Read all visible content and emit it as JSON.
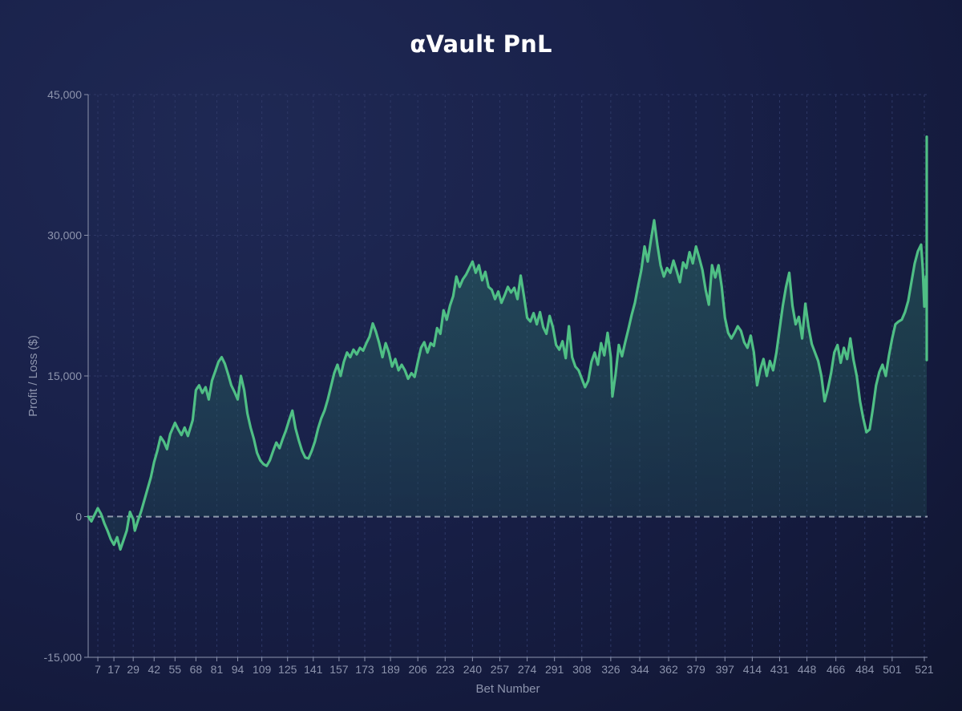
{
  "chart_data": {
    "type": "area",
    "title": "αVault PnL",
    "xlabel": "Bet Number",
    "ylabel": "Profit / Loss ($)",
    "ylim": [
      -15000,
      45000
    ],
    "xlim": [
      1,
      523
    ],
    "y_ticks": [
      -15000,
      0,
      15000,
      30000,
      45000
    ],
    "y_tick_labels": [
      "-15,000",
      "0",
      "15,000",
      "30,000",
      "45,000"
    ],
    "x_ticks": [
      7,
      17,
      29,
      42,
      55,
      68,
      81,
      94,
      109,
      125,
      141,
      157,
      173,
      189,
      206,
      223,
      240,
      257,
      274,
      291,
      308,
      326,
      344,
      362,
      379,
      397,
      414,
      431,
      448,
      466,
      484,
      501,
      521
    ],
    "zero_line": true,
    "grid": "dashed vertical and horizontal",
    "colors": {
      "line": "#4fbf85",
      "zero_line": "#aab0c4",
      "grid": "#2e3866",
      "axis": "#8d94ad",
      "background": "#19214a"
    },
    "series": [
      {
        "points": [
          [
            1,
            0
          ],
          [
            3,
            -500
          ],
          [
            5,
            200
          ],
          [
            7,
            900
          ],
          [
            9,
            300
          ],
          [
            11,
            -700
          ],
          [
            13,
            -1500
          ],
          [
            15,
            -2400
          ],
          [
            17,
            -3000
          ],
          [
            19,
            -2200
          ],
          [
            21,
            -3500
          ],
          [
            23,
            -2500
          ],
          [
            25,
            -1500
          ],
          [
            27,
            500
          ],
          [
            29,
            -300
          ],
          [
            30,
            -1500
          ],
          [
            32,
            -400
          ],
          [
            34,
            600
          ],
          [
            36,
            1800
          ],
          [
            38,
            3000
          ],
          [
            40,
            4200
          ],
          [
            42,
            5800
          ],
          [
            44,
            7000
          ],
          [
            46,
            8500
          ],
          [
            48,
            8000
          ],
          [
            50,
            7200
          ],
          [
            52,
            8800
          ],
          [
            54,
            9600
          ],
          [
            55,
            10000
          ],
          [
            57,
            9300
          ],
          [
            59,
            8700
          ],
          [
            61,
            9500
          ],
          [
            63,
            8600
          ],
          [
            66,
            10300
          ],
          [
            68,
            13500
          ],
          [
            70,
            14000
          ],
          [
            72,
            13200
          ],
          [
            74,
            13800
          ],
          [
            76,
            12500
          ],
          [
            78,
            14500
          ],
          [
            80,
            15500
          ],
          [
            82,
            16500
          ],
          [
            84,
            17000
          ],
          [
            86,
            16300
          ],
          [
            88,
            15200
          ],
          [
            90,
            14000
          ],
          [
            92,
            13300
          ],
          [
            94,
            12500
          ],
          [
            96,
            15000
          ],
          [
            98,
            13500
          ],
          [
            100,
            11000
          ],
          [
            102,
            9500
          ],
          [
            104,
            8300
          ],
          [
            106,
            6800
          ],
          [
            108,
            6000
          ],
          [
            110,
            5600
          ],
          [
            112,
            5400
          ],
          [
            114,
            6000
          ],
          [
            116,
            7000
          ],
          [
            118,
            7900
          ],
          [
            120,
            7300
          ],
          [
            122,
            8300
          ],
          [
            124,
            9200
          ],
          [
            126,
            10300
          ],
          [
            128,
            11300
          ],
          [
            130,
            9400
          ],
          [
            132,
            8100
          ],
          [
            134,
            7000
          ],
          [
            136,
            6300
          ],
          [
            138,
            6200
          ],
          [
            140,
            7000
          ],
          [
            142,
            8000
          ],
          [
            144,
            9400
          ],
          [
            146,
            10500
          ],
          [
            148,
            11300
          ],
          [
            150,
            12500
          ],
          [
            152,
            13900
          ],
          [
            154,
            15300
          ],
          [
            156,
            16200
          ],
          [
            158,
            15000
          ],
          [
            160,
            16500
          ],
          [
            162,
            17500
          ],
          [
            164,
            17000
          ],
          [
            166,
            17800
          ],
          [
            168,
            17300
          ],
          [
            170,
            18000
          ],
          [
            172,
            17700
          ],
          [
            174,
            18500
          ],
          [
            176,
            19200
          ],
          [
            178,
            20600
          ],
          [
            180,
            19700
          ],
          [
            182,
            18500
          ],
          [
            184,
            17000
          ],
          [
            186,
            18500
          ],
          [
            188,
            17500
          ],
          [
            190,
            16000
          ],
          [
            192,
            16800
          ],
          [
            194,
            15600
          ],
          [
            196,
            16200
          ],
          [
            198,
            15600
          ],
          [
            200,
            14700
          ],
          [
            202,
            15300
          ],
          [
            204,
            14900
          ],
          [
            206,
            16500
          ],
          [
            208,
            18000
          ],
          [
            210,
            18600
          ],
          [
            212,
            17500
          ],
          [
            214,
            18500
          ],
          [
            216,
            18200
          ],
          [
            218,
            20100
          ],
          [
            220,
            19500
          ],
          [
            222,
            22000
          ],
          [
            224,
            21000
          ],
          [
            226,
            22500
          ],
          [
            228,
            23500
          ],
          [
            230,
            25600
          ],
          [
            232,
            24500
          ],
          [
            234,
            25300
          ],
          [
            236,
            25800
          ],
          [
            238,
            26500
          ],
          [
            240,
            27200
          ],
          [
            242,
            26000
          ],
          [
            244,
            26800
          ],
          [
            246,
            25200
          ],
          [
            248,
            26100
          ],
          [
            250,
            24500
          ],
          [
            252,
            24200
          ],
          [
            254,
            23200
          ],
          [
            256,
            24000
          ],
          [
            258,
            22800
          ],
          [
            260,
            23600
          ],
          [
            262,
            24500
          ],
          [
            264,
            23900
          ],
          [
            266,
            24400
          ],
          [
            268,
            23200
          ],
          [
            270,
            25700
          ],
          [
            272,
            23500
          ],
          [
            274,
            21200
          ],
          [
            276,
            20800
          ],
          [
            278,
            21700
          ],
          [
            280,
            20500
          ],
          [
            282,
            21800
          ],
          [
            284,
            20200
          ],
          [
            286,
            19500
          ],
          [
            288,
            21400
          ],
          [
            290,
            20200
          ],
          [
            292,
            18300
          ],
          [
            294,
            17800
          ],
          [
            296,
            18700
          ],
          [
            298,
            16900
          ],
          [
            300,
            20300
          ],
          [
            302,
            17000
          ],
          [
            304,
            16000
          ],
          [
            306,
            15600
          ],
          [
            308,
            14700
          ],
          [
            310,
            13800
          ],
          [
            312,
            14500
          ],
          [
            314,
            16500
          ],
          [
            316,
            17500
          ],
          [
            318,
            16200
          ],
          [
            320,
            18500
          ],
          [
            322,
            17200
          ],
          [
            324,
            19600
          ],
          [
            326,
            17000
          ],
          [
            327,
            12800
          ],
          [
            329,
            15200
          ],
          [
            331,
            18300
          ],
          [
            333,
            17100
          ],
          [
            335,
            18600
          ],
          [
            337,
            20000
          ],
          [
            339,
            21500
          ],
          [
            341,
            22800
          ],
          [
            343,
            24600
          ],
          [
            345,
            26300
          ],
          [
            347,
            28800
          ],
          [
            349,
            27200
          ],
          [
            351,
            29500
          ],
          [
            353,
            31600
          ],
          [
            355,
            29000
          ],
          [
            357,
            26800
          ],
          [
            359,
            25600
          ],
          [
            361,
            26500
          ],
          [
            363,
            26000
          ],
          [
            365,
            27300
          ],
          [
            367,
            26200
          ],
          [
            369,
            25000
          ],
          [
            371,
            27100
          ],
          [
            373,
            26500
          ],
          [
            375,
            28200
          ],
          [
            377,
            27000
          ],
          [
            379,
            28800
          ],
          [
            381,
            27600
          ],
          [
            383,
            26300
          ],
          [
            385,
            24200
          ],
          [
            387,
            22600
          ],
          [
            389,
            26800
          ],
          [
            391,
            25500
          ],
          [
            393,
            26800
          ],
          [
            395,
            24500
          ],
          [
            397,
            21200
          ],
          [
            399,
            19600
          ],
          [
            401,
            19000
          ],
          [
            403,
            19600
          ],
          [
            405,
            20300
          ],
          [
            407,
            19800
          ],
          [
            409,
            18600
          ],
          [
            411,
            18000
          ],
          [
            413,
            19300
          ],
          [
            415,
            17500
          ],
          [
            417,
            14000
          ],
          [
            419,
            15700
          ],
          [
            421,
            16800
          ],
          [
            423,
            15000
          ],
          [
            425,
            16600
          ],
          [
            427,
            15600
          ],
          [
            429,
            17500
          ],
          [
            431,
            20000
          ],
          [
            433,
            22500
          ],
          [
            435,
            24500
          ],
          [
            437,
            26000
          ],
          [
            439,
            22500
          ],
          [
            441,
            20500
          ],
          [
            443,
            21300
          ],
          [
            445,
            19000
          ],
          [
            447,
            22700
          ],
          [
            449,
            20200
          ],
          [
            451,
            18400
          ],
          [
            453,
            17500
          ],
          [
            455,
            16600
          ],
          [
            457,
            15000
          ],
          [
            459,
            12300
          ],
          [
            461,
            13600
          ],
          [
            463,
            15300
          ],
          [
            465,
            17500
          ],
          [
            467,
            18300
          ],
          [
            469,
            16400
          ],
          [
            471,
            18000
          ],
          [
            473,
            16800
          ],
          [
            475,
            19000
          ],
          [
            477,
            16700
          ],
          [
            479,
            15000
          ],
          [
            481,
            12300
          ],
          [
            483,
            10500
          ],
          [
            485,
            9000
          ],
          [
            487,
            9300
          ],
          [
            489,
            11500
          ],
          [
            491,
            14000
          ],
          [
            493,
            15400
          ],
          [
            495,
            16200
          ],
          [
            497,
            15000
          ],
          [
            499,
            17200
          ],
          [
            501,
            19000
          ],
          [
            503,
            20500
          ],
          [
            505,
            20800
          ],
          [
            507,
            21000
          ],
          [
            509,
            21800
          ],
          [
            511,
            23000
          ],
          [
            513,
            25000
          ],
          [
            515,
            27000
          ],
          [
            517,
            28300
          ],
          [
            519,
            29000
          ],
          [
            520,
            26500
          ],
          [
            521,
            22400
          ],
          [
            522,
            25600
          ],
          [
            523,
            24100
          ],
          [
            524,
            25500
          ],
          [
            525,
            23300
          ],
          [
            526,
            20500
          ],
          [
            527,
            18300
          ],
          [
            528,
            16700
          ],
          [
            529,
            17800
          ],
          [
            530,
            19000
          ],
          [
            531,
            21500
          ],
          [
            532,
            28000
          ],
          [
            533,
            26000
          ],
          [
            534,
            40500
          ]
        ]
      }
    ]
  }
}
